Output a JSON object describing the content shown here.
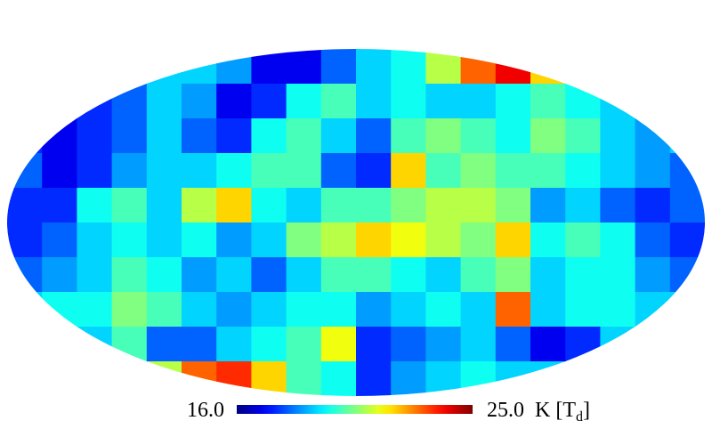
{
  "chart_data": {
    "type": "mollweide",
    "colormap": "jet",
    "clim": [
      16,
      25
    ],
    "cticks": [
      {
        "value": 16,
        "label": "16.0"
      },
      {
        "value": 25,
        "label": "25.0"
      }
    ],
    "colorbar_label_parts": [
      "K [T",
      "d",
      "]"
    ],
    "values": [
      [
        19,
        19,
        19,
        19,
        19,
        19,
        18.5,
        17,
        17,
        18,
        19,
        19.5,
        21,
        23,
        24,
        22,
        20,
        19,
        19,
        19
      ],
      [
        18,
        17.5,
        17.5,
        18,
        19,
        18.5,
        17,
        17.5,
        19.5,
        20,
        19,
        19.5,
        19,
        19,
        19.5,
        20,
        19.5,
        19,
        19,
        19
      ],
      [
        17.5,
        17,
        17.5,
        18,
        19,
        18,
        17.5,
        19.5,
        20,
        19,
        18,
        20,
        20.5,
        20,
        19.5,
        20.5,
        20,
        19,
        18.5,
        19
      ],
      [
        18,
        17,
        17.5,
        18.5,
        19,
        19,
        19.5,
        20,
        20,
        18,
        17.5,
        22,
        20,
        20.5,
        20,
        20,
        19.5,
        19,
        18.5,
        18
      ],
      [
        17.5,
        17.5,
        19.5,
        20,
        19,
        21,
        22,
        19.5,
        19,
        20,
        20,
        20.5,
        21,
        21,
        20.5,
        18.5,
        19,
        18,
        17.5,
        18
      ],
      [
        17.5,
        18,
        19,
        19.5,
        19,
        19.5,
        18.5,
        19,
        20.5,
        21,
        22,
        21.5,
        21,
        20.5,
        22,
        19.5,
        20,
        19.5,
        18,
        17.5
      ],
      [
        18,
        18.5,
        19,
        20,
        19.5,
        18.5,
        19,
        18,
        19,
        20,
        20,
        19.5,
        19,
        20,
        20.5,
        19,
        19.5,
        19.5,
        18.5,
        18
      ],
      [
        19,
        19.5,
        19.5,
        20.5,
        20,
        19,
        18.5,
        19,
        19.5,
        19.5,
        18.5,
        19,
        19.5,
        19,
        23,
        19,
        19.5,
        19.5,
        19,
        19
      ],
      [
        19,
        19,
        19,
        20,
        18,
        18,
        19,
        19.5,
        20,
        21.5,
        17.5,
        18,
        18.5,
        19,
        18,
        17,
        17.5,
        19,
        19,
        19
      ],
      [
        19,
        19,
        19,
        20,
        21,
        23,
        23.5,
        22,
        20,
        19.5,
        17.5,
        18.5,
        19,
        19.5,
        19,
        19,
        19,
        19,
        19,
        19
      ]
    ]
  }
}
